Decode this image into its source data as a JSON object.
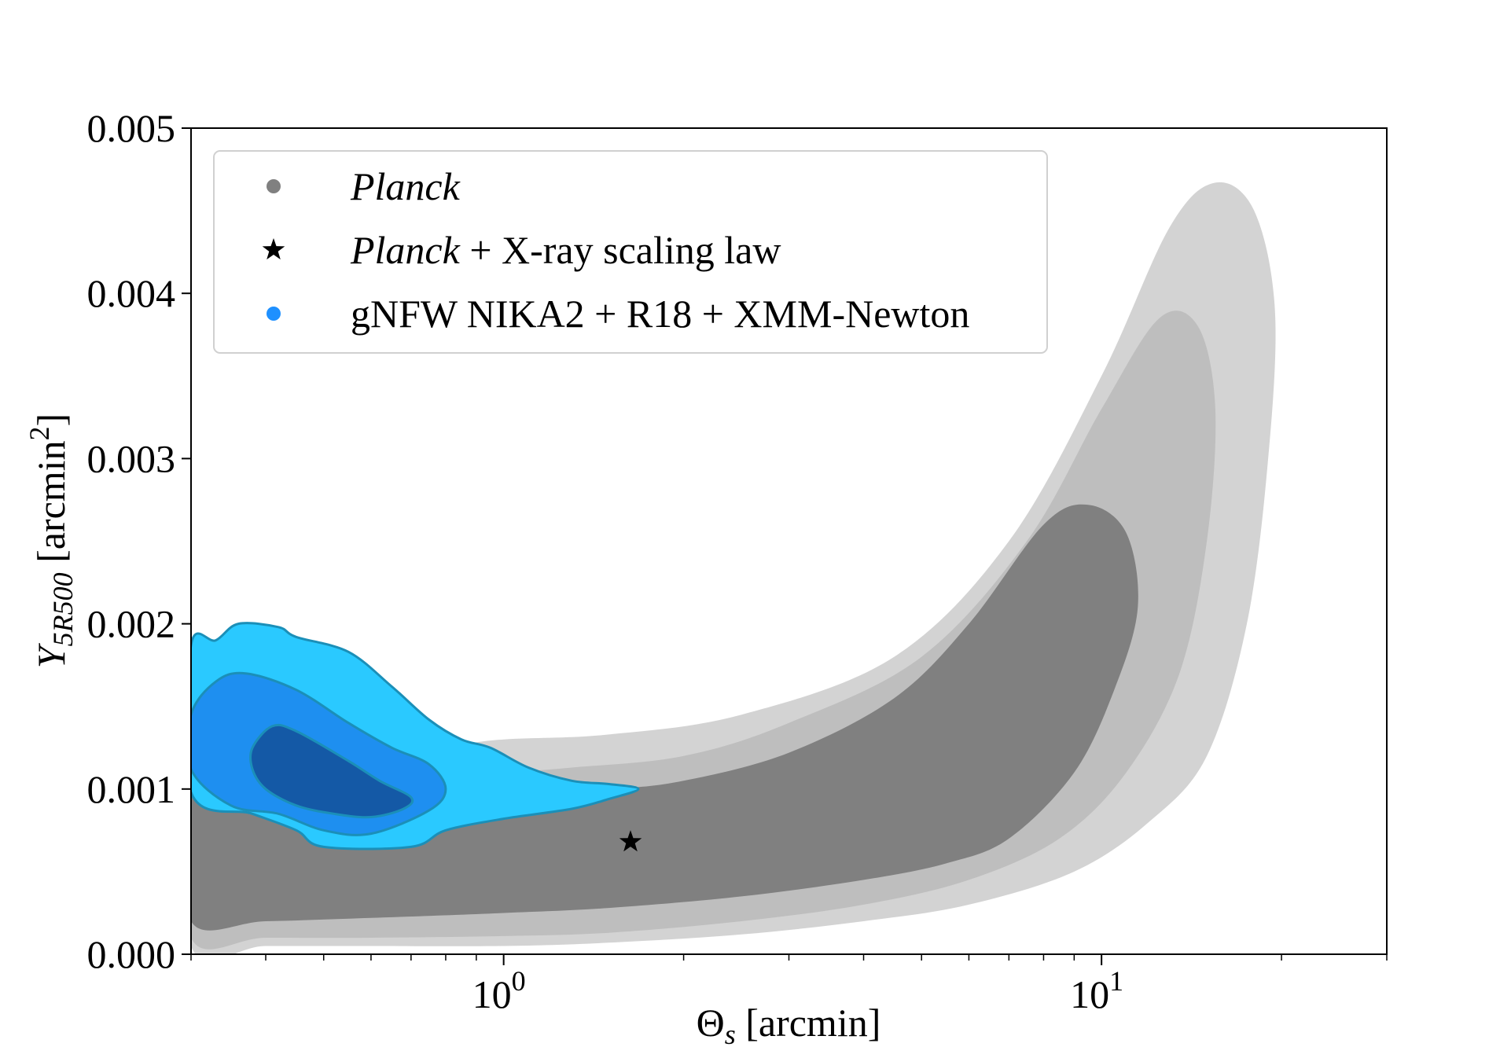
{
  "chart_data": {
    "type": "contour",
    "title": "",
    "xlabel": {
      "symbol": "Θ",
      "subscript": "s",
      "unit": "[arcmin]"
    },
    "ylabel": {
      "symbol": "Y",
      "subscript": "5R500",
      "unit": "[arcmin",
      "unit_sup": "2",
      "unit_end": "]"
    },
    "xscale": "log",
    "xlim": [
      0.3,
      30
    ],
    "ylim": [
      0.0,
      0.005
    ],
    "y_ticks": [
      "0.000",
      "0.001",
      "0.002",
      "0.003",
      "0.004",
      "0.005"
    ],
    "y_tick_values": [
      0.0,
      0.001,
      0.002,
      0.003,
      0.004,
      0.005
    ],
    "x_major_ticks": [
      {
        "value": 1,
        "base": "10",
        "exp": "0"
      },
      {
        "value": 10,
        "base": "10",
        "exp": "1"
      }
    ],
    "x_minor_ticks": [
      0.3,
      0.4,
      0.5,
      0.6,
      0.7,
      0.8,
      0.9,
      2,
      3,
      4,
      5,
      6,
      7,
      8,
      9,
      20,
      30
    ],
    "legend": {
      "position": "upper-left",
      "entries": [
        {
          "marker": "circle",
          "color": "#808080",
          "label_italic": "Planck",
          "label_rest": ""
        },
        {
          "marker": "star",
          "color": "#000000",
          "label_italic": "Planck",
          "label_rest": " + X-ray scaling law"
        },
        {
          "marker": "circle",
          "color": "#1e90ff",
          "label_italic": "",
          "label_rest": "gNFW NIKA2 + R18 + XMM-Newton"
        }
      ]
    },
    "series": [
      {
        "name": "Planck",
        "colors": [
          "#d3d3d3",
          "#bebebe",
          "#808080"
        ],
        "levels": [
          {
            "level": "outer",
            "points": [
              [
                0.3,
                5e-05
              ],
              [
                0.4,
                5e-05
              ],
              [
                0.6,
                5e-05
              ],
              [
                1.0,
                5e-05
              ],
              [
                1.5,
                7e-05
              ],
              [
                2.5,
                0.00012
              ],
              [
                4.0,
                0.0002
              ],
              [
                6.0,
                0.0003
              ],
              [
                9.0,
                0.0005
              ],
              [
                12.0,
                0.0008
              ],
              [
                15.0,
                0.0012
              ],
              [
                17.5,
                0.002
              ],
              [
                19.0,
                0.003
              ],
              [
                19.5,
                0.0039
              ],
              [
                18.0,
                0.0045
              ],
              [
                15.5,
                0.00467
              ],
              [
                13.0,
                0.0044
              ],
              [
                10.0,
                0.0035
              ],
              [
                7.0,
                0.0025
              ],
              [
                4.5,
                0.0018
              ],
              [
                2.5,
                0.00145
              ],
              [
                1.5,
                0.00133
              ],
              [
                1.0,
                0.0013
              ],
              [
                0.7,
                0.00125
              ],
              [
                0.3,
                0.00125
              ]
            ]
          },
          {
            "level": "middle",
            "points": [
              [
                0.3,
                0.0001
              ],
              [
                0.4,
                0.0001
              ],
              [
                0.6,
                0.0001
              ],
              [
                1.0,
                0.00011
              ],
              [
                1.5,
                0.00013
              ],
              [
                2.5,
                0.0002
              ],
              [
                4.0,
                0.0003
              ],
              [
                6.0,
                0.00045
              ],
              [
                8.5,
                0.0007
              ],
              [
                11.0,
                0.0011
              ],
              [
                13.5,
                0.0017
              ],
              [
                15.0,
                0.0025
              ],
              [
                15.5,
                0.0033
              ],
              [
                14.5,
                0.0038
              ],
              [
                12.5,
                0.00385
              ],
              [
                10.0,
                0.0033
              ],
              [
                7.5,
                0.0025
              ],
              [
                5.0,
                0.0018
              ],
              [
                3.0,
                0.0014
              ],
              [
                2.0,
                0.0012
              ],
              [
                1.3,
                0.00113
              ],
              [
                1.0,
                0.0011
              ],
              [
                0.7,
                0.00107
              ],
              [
                0.3,
                0.00105
              ]
            ]
          },
          {
            "level": "inner",
            "points": [
              [
                0.3,
                0.0002
              ],
              [
                0.4,
                0.0002
              ],
              [
                0.6,
                0.00022
              ],
              [
                1.0,
                0.00025
              ],
              [
                1.5,
                0.00028
              ],
              [
                2.5,
                0.00035
              ],
              [
                4.0,
                0.00045
              ],
              [
                5.5,
                0.00055
              ],
              [
                7.0,
                0.0007
              ],
              [
                9.0,
                0.0011
              ],
              [
                10.5,
                0.0016
              ],
              [
                11.5,
                0.0021
              ],
              [
                11.0,
                0.00255
              ],
              [
                9.5,
                0.00272
              ],
              [
                8.0,
                0.0026
              ],
              [
                6.0,
                0.002
              ],
              [
                4.5,
                0.00155
              ],
              [
                3.0,
                0.00122
              ],
              [
                2.0,
                0.00105
              ],
              [
                1.5,
                0.001
              ],
              [
                1.0,
                0.00098
              ],
              [
                0.7,
                0.00096
              ],
              [
                0.5,
                0.00095
              ],
              [
                0.3,
                0.00095
              ]
            ]
          }
        ]
      },
      {
        "name": "gNFW NIKA2 + R18 + XMM-Newton",
        "colors": [
          "#2ac9ff",
          "#1e8ff0",
          "#1459a6"
        ],
        "edge_color": "#1b8fb8",
        "levels": [
          {
            "level": "outer",
            "points": [
              [
                0.3,
                0.00187
              ],
              [
                0.33,
                0.0019
              ],
              [
                0.36,
                0.002
              ],
              [
                0.42,
                0.00198
              ],
              [
                0.45,
                0.00192
              ],
              [
                0.55,
                0.00183
              ],
              [
                0.65,
                0.00162
              ],
              [
                0.75,
                0.00142
              ],
              [
                0.85,
                0.0013
              ],
              [
                0.95,
                0.00125
              ],
              [
                1.1,
                0.00113
              ],
              [
                1.3,
                0.00105
              ],
              [
                1.5,
                0.00103
              ],
              [
                1.68,
                0.001
              ],
              [
                1.5,
                0.00094
              ],
              [
                1.3,
                0.00088
              ],
              [
                1.0,
                0.00082
              ],
              [
                0.8,
                0.00075
              ],
              [
                0.7,
                0.00065
              ],
              [
                0.5,
                0.00065
              ],
              [
                0.45,
                0.00075
              ],
              [
                0.38,
                0.00085
              ],
              [
                0.3,
                0.00098
              ]
            ]
          },
          {
            "level": "middle",
            "points": [
              [
                0.3,
                0.00145
              ],
              [
                0.33,
                0.00165
              ],
              [
                0.37,
                0.0017
              ],
              [
                0.45,
                0.0016
              ],
              [
                0.55,
                0.0014
              ],
              [
                0.65,
                0.00125
              ],
              [
                0.75,
                0.00115
              ],
              [
                0.8,
                0.001
              ],
              [
                0.75,
                0.00087
              ],
              [
                0.6,
                0.00073
              ],
              [
                0.5,
                0.00075
              ],
              [
                0.42,
                0.00085
              ],
              [
                0.35,
                0.0009
              ],
              [
                0.3,
                0.00112
              ]
            ]
          },
          {
            "level": "inner",
            "points": [
              [
                0.38,
                0.00125
              ],
              [
                0.41,
                0.00138
              ],
              [
                0.45,
                0.00135
              ],
              [
                0.55,
                0.00117
              ],
              [
                0.62,
                0.00105
              ],
              [
                0.7,
                0.00095
              ],
              [
                0.68,
                0.00088
              ],
              [
                0.6,
                0.00083
              ],
              [
                0.52,
                0.00085
              ],
              [
                0.45,
                0.0009
              ],
              [
                0.4,
                0.001
              ],
              [
                0.38,
                0.00112
              ]
            ]
          }
        ]
      }
    ],
    "points": [
      {
        "name": "Planck + X-ray scaling law",
        "marker": "star",
        "x": 1.63,
        "y": 0.00068
      }
    ]
  }
}
